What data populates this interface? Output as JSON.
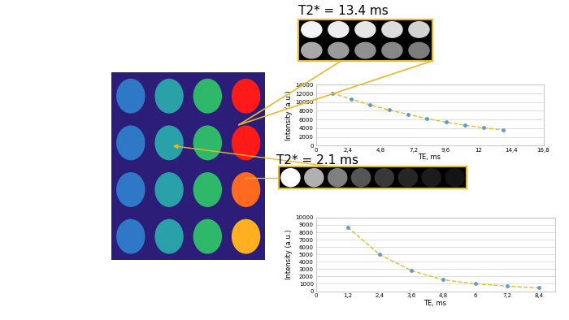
{
  "chart_data": [
    {
      "type": "line",
      "title": "T2* = 13.4 ms",
      "x_label": "TE, ms",
      "y_label": "Intensity (a.u.)",
      "x": [
        1.2,
        2.6,
        4.0,
        5.4,
        6.8,
        8.2,
        9.6,
        11.0,
        12.4,
        13.8
      ],
      "values": [
        12100,
        10700,
        9400,
        8200,
        7200,
        6200,
        5400,
        4700,
        4100,
        3600
      ],
      "color": "#5b9bd5",
      "marker": "o",
      "line_style": "dashed",
      "xlim": [
        0,
        16.8
      ],
      "xticks": [
        0,
        {
          "value": 2.4,
          "label": "2,4"
        },
        {
          "value": 4.8,
          "label": "4,8"
        },
        {
          "value": 7.2,
          "label": "7,2"
        },
        {
          "value": 9.6,
          "label": "9,6"
        },
        12,
        {
          "value": 14.4,
          "label": "14,4"
        },
        {
          "value": 16.8,
          "label": "16,8"
        }
      ],
      "ylim": [
        0,
        14000
      ],
      "yticks": [
        0,
        2000,
        4000,
        6000,
        8000,
        10000,
        12000,
        14000
      ],
      "grid": true
    },
    {
      "type": "line",
      "title": "T2* = 2.1 ms",
      "x_label": "TE, ms",
      "y_label": "Intensity (a.u.)",
      "x": [
        1.2,
        2.4,
        3.6,
        4.8,
        6.0,
        7.2,
        8.4
      ],
      "values": [
        8700,
        5000,
        2800,
        1550,
        1000,
        700,
        450
      ],
      "color": "#5b9bd5",
      "marker": "o",
      "line_style": "dashed",
      "xlim": [
        0,
        9
      ],
      "xticks": [
        0,
        {
          "value": 1.2,
          "label": "1,2"
        },
        {
          "value": 2.4,
          "label": "2,4"
        },
        {
          "value": 3.6,
          "label": "3,6"
        },
        {
          "value": 4.8,
          "label": "4,8"
        },
        6,
        {
          "value": 7.2,
          "label": "7,2"
        },
        {
          "value": 8.4,
          "label": "8,4"
        }
      ],
      "ylim": [
        0,
        10000
      ],
      "yticks": [
        0,
        1000,
        2000,
        3000,
        4000,
        5000,
        6000,
        7000,
        8000,
        9000,
        10000
      ],
      "grid": true
    }
  ]
}
